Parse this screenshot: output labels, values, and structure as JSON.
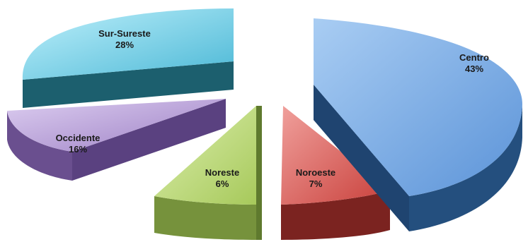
{
  "chart_data": {
    "type": "pie",
    "title": "",
    "style": "3d-exploded",
    "legend": "none",
    "slices": [
      {
        "label": "Centro",
        "value": 43,
        "percent_label": "43%",
        "color": "#5B9BD5"
      },
      {
        "label": "Noroeste",
        "value": 7,
        "percent_label": "7%",
        "color": "#C0504D"
      },
      {
        "label": "Noreste",
        "value": 6,
        "percent_label": "6%",
        "color": "#9BBB59"
      },
      {
        "label": "Occidente",
        "value": 16,
        "percent_label": "16%",
        "color": "#8064A2"
      },
      {
        "label": "Sur-Sureste",
        "value": 28,
        "percent_label": "28%",
        "color": "#4BACC6"
      }
    ]
  }
}
